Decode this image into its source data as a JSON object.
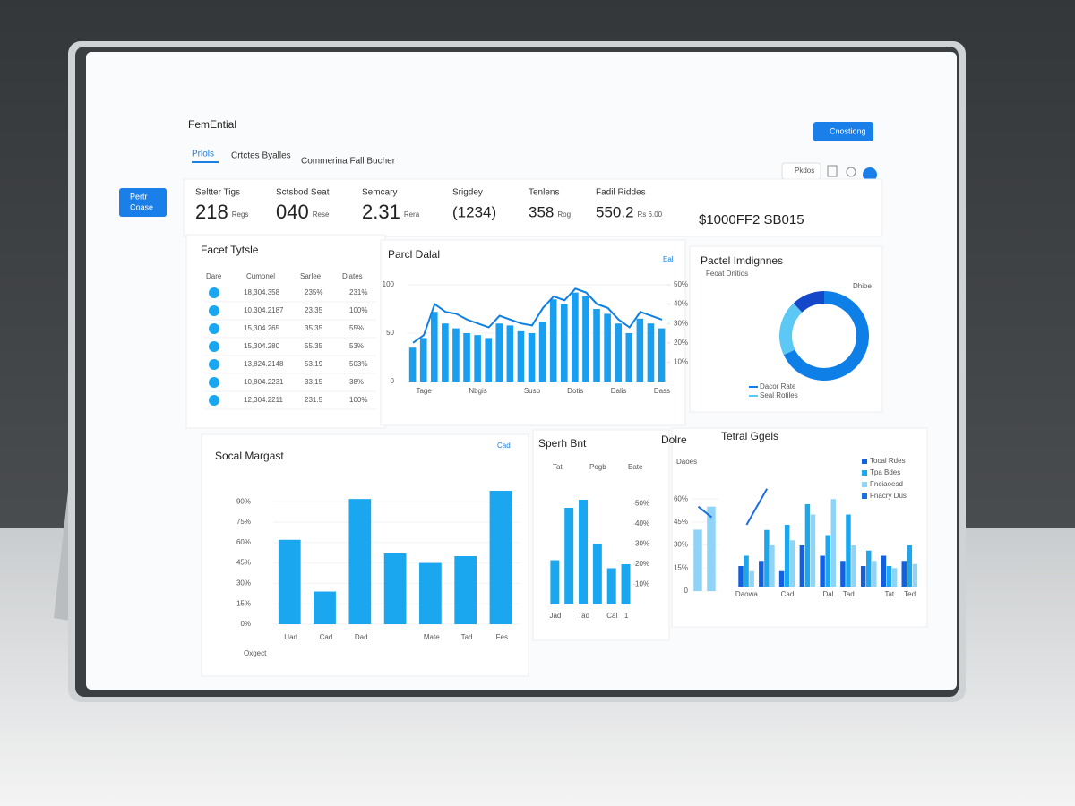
{
  "header": {
    "title": "FemEntial",
    "tabs": [
      "Prlols",
      "Crtctes Byalles",
      "Commerina Fall Bucher"
    ],
    "button": "Cnostiong",
    "toolbar": "Pkdos"
  },
  "sidebar": {
    "button": [
      "Pertr",
      "Coase"
    ]
  },
  "kpis": [
    {
      "label": "Seltter Tigs",
      "value": "218",
      "unit": "Regs"
    },
    {
      "label": "Sctsbod Seat",
      "value": "040",
      "unit": "Rese"
    },
    {
      "label": "Semcary",
      "value": "2.31",
      "unit": "Rera"
    },
    {
      "label": "Srigdey",
      "value": "(1234)"
    },
    {
      "label": "Tenlens",
      "value": "358",
      "unit": "Rog"
    },
    {
      "label": "Fadil Riddes",
      "value": "550.2",
      "unit": "Rs 6.00"
    }
  ],
  "total": "$1000FF2 SB015",
  "table": {
    "title": "Facet Tytsle",
    "columns": [
      "Dare",
      "Cumonel",
      "Sarlee",
      "Dlates"
    ],
    "rows": [
      [
        "18,304.358",
        "235%",
        "231%"
      ],
      [
        "10,304.2187",
        "23.35",
        "100%"
      ],
      [
        "15,304.265",
        "35.35",
        "55%"
      ],
      [
        "15,304.280",
        "55.35",
        "53%"
      ],
      [
        "13,824.2148",
        "53.19",
        "503%"
      ],
      [
        "10,804.2231",
        "33.15",
        "38%"
      ],
      [
        "12,304.2211",
        "231.5",
        "100%"
      ]
    ]
  },
  "chart_data": [
    {
      "type": "bar",
      "title": "Parcl Dalal",
      "action": "Eal",
      "categories": [
        null,
        "Tage",
        null,
        null,
        null,
        null,
        "Nbgis",
        null,
        null,
        null,
        null,
        "Susb",
        null,
        null,
        null,
        "Dotis",
        null,
        null,
        null,
        "Dalis",
        null,
        null,
        null,
        "Dass"
      ],
      "series": [
        {
          "color": "#1a9ff0",
          "values": [
            35,
            45,
            72,
            60,
            55,
            50,
            48,
            45,
            60,
            58,
            52,
            50,
            62,
            85,
            80,
            92,
            88,
            75,
            70,
            60,
            50,
            65,
            60,
            55
          ]
        },
        {
          "type": "line",
          "axis": "y2",
          "color": "#0f7fe0",
          "values": [
            20,
            24,
            40,
            36,
            35,
            32,
            30,
            28,
            34,
            32,
            30,
            29,
            38,
            44,
            42,
            48,
            46,
            40,
            38,
            32,
            28,
            36,
            34,
            32
          ]
        }
      ],
      "ylim": [
        0,
        100
      ],
      "yticks": [
        0,
        50,
        100
      ],
      "y2lim": [
        0,
        50
      ],
      "y2ticks": [
        {
          "value": 10,
          "label": "10%"
        },
        {
          "value": 20,
          "label": "20%"
        },
        {
          "value": 30,
          "label": "30%"
        },
        {
          "value": 40,
          "label": "40%"
        },
        {
          "value": 50,
          "label": "50%"
        }
      ]
    },
    {
      "type": "pie",
      "title": "Pactel Imdignnes",
      "subtitle": "Feoat Dnitios",
      "label": "Dhioe",
      "categories": [
        "Dacor Rate",
        "Seal Rotiles",
        "Dhioe"
      ],
      "values": [
        68,
        20,
        12
      ],
      "colors": [
        "#0f7fe8",
        "#5cc8f5",
        "#1448c8"
      ]
    },
    {
      "type": "bar",
      "title": "Socal Margast",
      "action": "Cad",
      "xlabel": "Oxgect",
      "categories": [
        "Uad",
        "Cad",
        "Dad",
        null,
        "Mate",
        "Tad",
        "Fes"
      ],
      "series": [
        {
          "color": "#1aa7f0",
          "values": [
            62,
            24,
            92,
            52,
            45,
            50,
            98
          ]
        }
      ],
      "ylim": [
        0,
        100
      ],
      "yticks": [
        {
          "value": 0,
          "label": "0%"
        },
        {
          "value": 15,
          "label": "15%"
        },
        {
          "value": 30,
          "label": "30%"
        },
        {
          "value": 45,
          "label": "45%"
        },
        {
          "value": 60,
          "label": "60%"
        },
        {
          "value": 75,
          "label": "75%"
        },
        {
          "value": 90,
          "label": "90%"
        }
      ]
    },
    {
      "type": "bar",
      "title": "Sperh Bnt",
      "columns": [
        "Tat",
        "Pogb",
        "Eate"
      ],
      "categories": [
        "Jad",
        null,
        "Tad",
        null,
        "Cal",
        "1"
      ],
      "series": [
        {
          "color": "#1aa7f0",
          "values": [
            22,
            48,
            52,
            30,
            18,
            20
          ]
        }
      ],
      "ylim": [
        0,
        60
      ],
      "y2lim": [
        0,
        60
      ],
      "y2ticks": [
        {
          "value": 10,
          "label": "10%"
        },
        {
          "value": 20,
          "label": "20%"
        },
        {
          "value": 30,
          "label": "30%"
        },
        {
          "value": 40,
          "label": "40%"
        },
        {
          "value": 50,
          "label": "50%"
        }
      ]
    },
    {
      "type": "bar",
      "title": "Dolre",
      "subtitle": "Daoes",
      "categories": [
        null,
        null
      ],
      "series": [
        {
          "color": "#8fd3f7",
          "values": [
            40,
            55
          ]
        },
        {
          "type": "line",
          "color": "#1a6fe0",
          "values": [
            55,
            48
          ]
        }
      ],
      "ylim": [
        0,
        70
      ],
      "yticks": [
        0,
        {
          "value": 15,
          "label": "15%"
        },
        {
          "value": 30,
          "label": "30%"
        },
        {
          "value": 45,
          "label": "45%"
        },
        {
          "value": 60,
          "label": "60%"
        }
      ]
    },
    {
      "type": "bar",
      "title": "Tetral Ggels",
      "categories": [
        "Daowa",
        null,
        "Cad",
        null,
        "Dal",
        "Tad",
        null,
        "Tat",
        "Ted"
      ],
      "series": [
        {
          "name": "Tocal Rdes",
          "color": "#1060e0",
          "values": [
            20,
            25,
            15,
            40,
            30,
            25,
            20,
            30,
            25
          ]
        },
        {
          "name": "Tpa Bdes",
          "color": "#1aa7f0",
          "values": [
            30,
            55,
            60,
            80,
            50,
            70,
            35,
            20,
            40
          ]
        },
        {
          "name": "Fnciaoesd",
          "color": "#8fd3f7",
          "values": [
            15,
            40,
            45,
            70,
            85,
            40,
            25,
            18,
            22
          ]
        },
        {
          "name": "Fnacry Dus",
          "type": "line",
          "color": "#1a6fe0",
          "values": [
            60,
            95,
            null,
            null,
            null,
            null,
            null,
            null,
            null
          ]
        }
      ],
      "ylim": [
        0,
        100
      ]
    }
  ]
}
